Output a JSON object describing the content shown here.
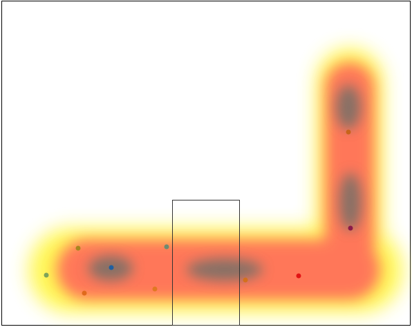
{
  "heatmap": {
    "colors": {
      "background": "#ffffff",
      "frame": "#000000",
      "band_outer": "#fff64a",
      "band_mid": "#ff6a5a",
      "band_core": "#5e6e6a"
    },
    "markers": [
      {
        "name": "marker-green-left",
        "color": "#7ea35a"
      },
      {
        "name": "marker-olive-top",
        "color": "#a8871e"
      },
      {
        "name": "marker-blue",
        "color": "#1f5fa0"
      },
      {
        "name": "marker-orange-bottom",
        "color": "#e06a1c"
      },
      {
        "name": "marker-gray-green",
        "color": "#6f8b70"
      },
      {
        "name": "marker-orange-mid",
        "color": "#e07822"
      },
      {
        "name": "marker-orange-right",
        "color": "#d4701c"
      },
      {
        "name": "marker-red",
        "color": "#e21414"
      },
      {
        "name": "marker-maroon",
        "color": "#8a1a4a"
      },
      {
        "name": "marker-orange-top",
        "color": "#c8641a"
      }
    ]
  }
}
